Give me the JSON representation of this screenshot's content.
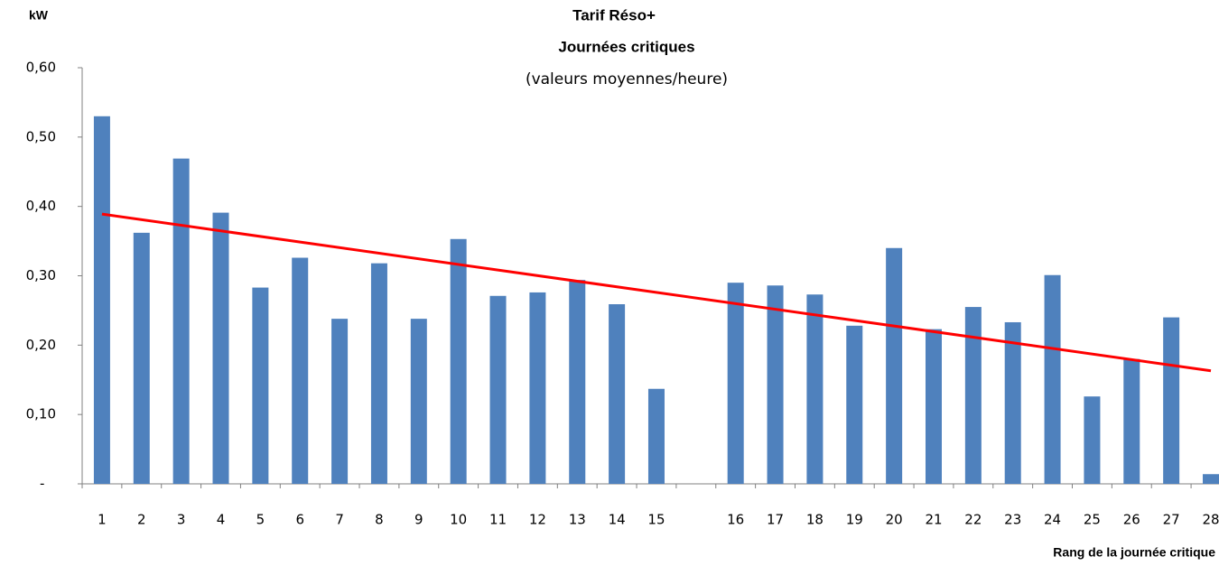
{
  "chart_data": {
    "type": "bar",
    "title": "Tarif Réso+",
    "subtitle": "Journées critiques",
    "note": "(valeurs moyennes/heure)",
    "y_label": "kW",
    "x_label": "Rang de la journée critique",
    "categories": [
      "1",
      "2",
      "3",
      "4",
      "5",
      "6",
      "7",
      "8",
      "9",
      "10",
      "11",
      "12",
      "13",
      "14",
      "15",
      null,
      "16",
      "17",
      "18",
      "19",
      "20",
      "21",
      "22",
      "23",
      "24",
      "25",
      "26",
      "27",
      "28"
    ],
    "values": [
      0.53,
      0.362,
      0.469,
      0.391,
      0.283,
      0.326,
      0.238,
      0.318,
      0.238,
      0.353,
      0.271,
      0.276,
      0.294,
      0.259,
      0.137,
      null,
      0.29,
      0.286,
      0.273,
      0.228,
      0.34,
      0.223,
      0.255,
      0.233,
      0.301,
      0.126,
      0.18,
      0.24,
      0.014
    ],
    "color": "#4f81bd",
    "trend": {
      "color": "#ff0000",
      "values": [
        0.389,
        0.163
      ]
    },
    "ylim": [
      0,
      0.6
    ],
    "yticks": [
      {
        "value": 0,
        "label": "-"
      },
      {
        "value": 0.1,
        "label": "0,10"
      },
      {
        "value": 0.2,
        "label": "0,20"
      },
      {
        "value": 0.3,
        "label": "0,30"
      },
      {
        "value": 0.4,
        "label": "0,40"
      },
      {
        "value": 0.5,
        "label": "0,50"
      },
      {
        "value": 0.6,
        "label": "0,60"
      }
    ]
  }
}
